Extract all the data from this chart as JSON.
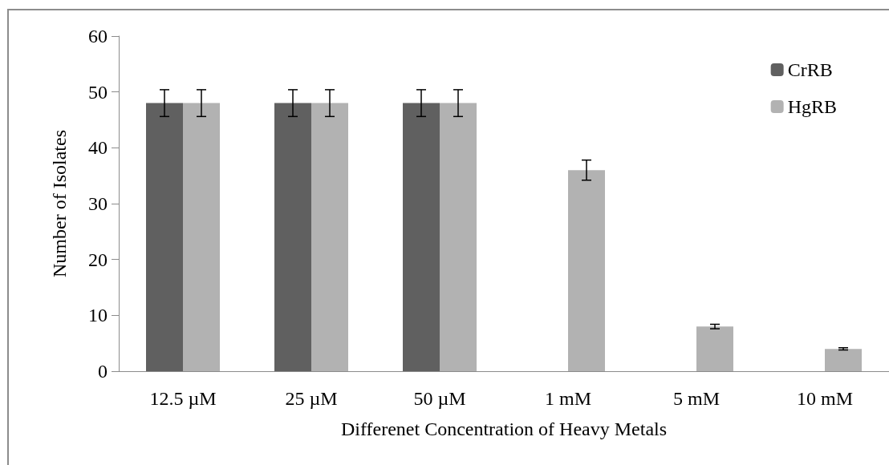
{
  "chart_data": {
    "type": "bar",
    "xlabel": "Differenet Concentration of Heavy Metals",
    "ylabel": "Number of Isolates",
    "categories": [
      "12.5 µM",
      "25 µM",
      "50 µM",
      "1 mM",
      "5 mM",
      "10 mM"
    ],
    "series": [
      {
        "name": "CrRB",
        "color": "#606060",
        "values": [
          48,
          48,
          48,
          0,
          0,
          0
        ],
        "errors": [
          2.4,
          2.4,
          2.4,
          null,
          null,
          null
        ]
      },
      {
        "name": "HgRB",
        "color": "#b2b2b2",
        "values": [
          48,
          48,
          48,
          36,
          8,
          4
        ],
        "errors": [
          2.4,
          2.4,
          2.4,
          1.8,
          0.4,
          0.2
        ]
      }
    ],
    "ylim": [
      0,
      60
    ],
    "yticks": [
      0,
      10,
      20,
      30,
      40,
      50,
      60
    ],
    "grid": false,
    "legend": "top right"
  }
}
